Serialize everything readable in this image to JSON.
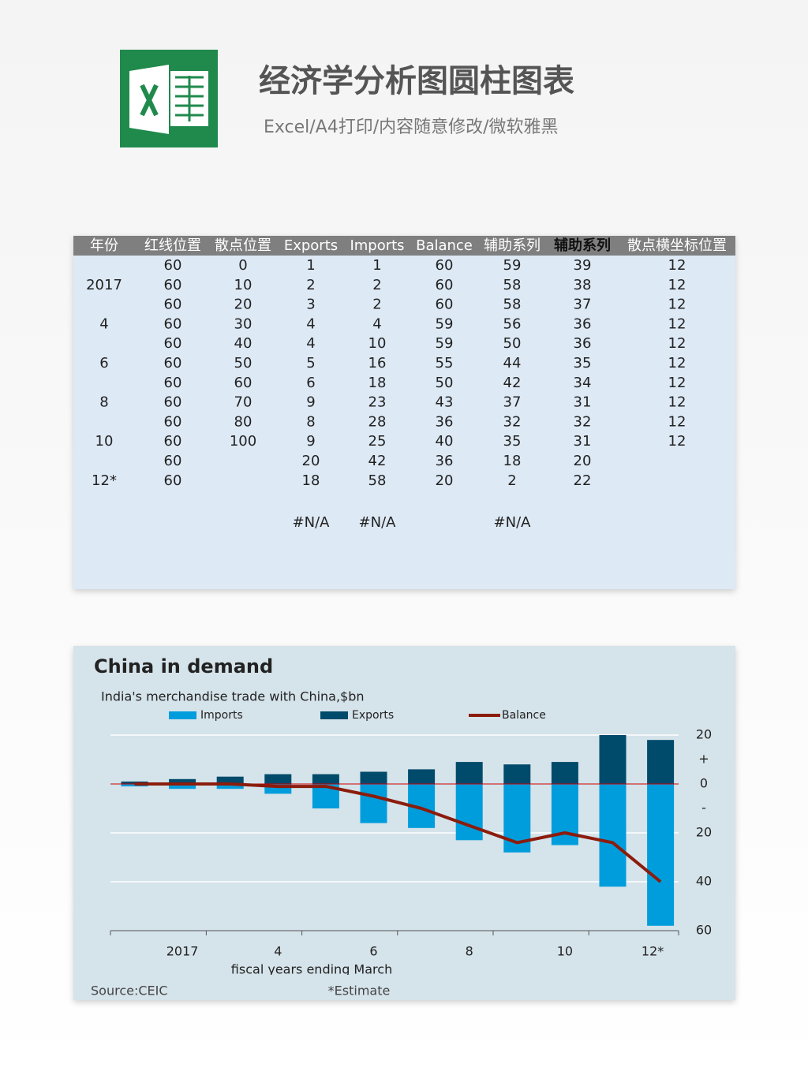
{
  "header": {
    "title": "经济学分析图圆柱图表",
    "subtitle": "Excel/A4打印/内容随意修改/微软雅黑"
  },
  "table": {
    "columns": [
      "年份",
      "红线位置",
      "散点位置",
      "Exports",
      "Imports",
      "Balance",
      "辅助系列",
      "辅助系列",
      "散点横坐标位置"
    ],
    "rows": [
      [
        null,
        60,
        0,
        1,
        1,
        60,
        59,
        39,
        12
      ],
      [
        "2017",
        60,
        10,
        2,
        2,
        60,
        58,
        38,
        12
      ],
      [
        null,
        60,
        20,
        3,
        2,
        60,
        58,
        37,
        12
      ],
      [
        "4",
        60,
        30,
        4,
        4,
        59,
        56,
        36,
        12
      ],
      [
        null,
        60,
        40,
        4,
        10,
        59,
        50,
        36,
        12
      ],
      [
        "6",
        60,
        50,
        5,
        16,
        55,
        44,
        35,
        12
      ],
      [
        null,
        60,
        60,
        6,
        18,
        50,
        42,
        34,
        12
      ],
      [
        "8",
        60,
        70,
        9,
        23,
        43,
        37,
        31,
        12
      ],
      [
        null,
        60,
        80,
        8,
        28,
        36,
        32,
        32,
        12
      ],
      [
        "10",
        60,
        100,
        9,
        25,
        40,
        35,
        31,
        12
      ],
      [
        null,
        60,
        null,
        20,
        42,
        36,
        18,
        20,
        null
      ],
      [
        "12*",
        60,
        null,
        18,
        58,
        20,
        2,
        22,
        null
      ],
      [
        null,
        null,
        null,
        "#N/A",
        "#N/A",
        null,
        "#N/A",
        null,
        null
      ]
    ]
  },
  "chart_data": {
    "type": "bar",
    "title": "China in demand",
    "subtitle": "India's merchandise trade with China,$bn",
    "categories": [
      null,
      "2017",
      null,
      "4",
      null,
      "6",
      null,
      "8",
      null,
      "10",
      null,
      "12*"
    ],
    "series": [
      {
        "name": "Imports",
        "color": "#009ddc",
        "values": [
          -1,
          -2,
          -2,
          -4,
          -10,
          -16,
          -18,
          -23,
          -28,
          -25,
          -42,
          -58
        ]
      },
      {
        "name": "Exports",
        "color": "#004a6b",
        "values": [
          1,
          2,
          3,
          4,
          4,
          5,
          6,
          9,
          8,
          9,
          20,
          18
        ]
      },
      {
        "name": "Balance",
        "type": "line",
        "color": "#8b1c0c",
        "values": [
          0,
          0,
          0,
          -1,
          -1,
          -5,
          -10,
          -17,
          -24,
          -20,
          -24,
          -40
        ]
      }
    ],
    "ylim": [
      -60,
      20
    ],
    "yticks": [
      20,
      {
        "value": 10,
        "label": "+"
      },
      0,
      {
        "value": -10,
        "label": "-"
      },
      {
        "value": -20,
        "label": "20"
      },
      {
        "value": -40,
        "label": "40"
      },
      {
        "value": -60,
        "label": "60"
      }
    ],
    "grid": true,
    "zero_line_color": "#cc0000",
    "x_label": "fiscal years ending March",
    "source": "Source:CEIC",
    "note": "*Estimate"
  }
}
